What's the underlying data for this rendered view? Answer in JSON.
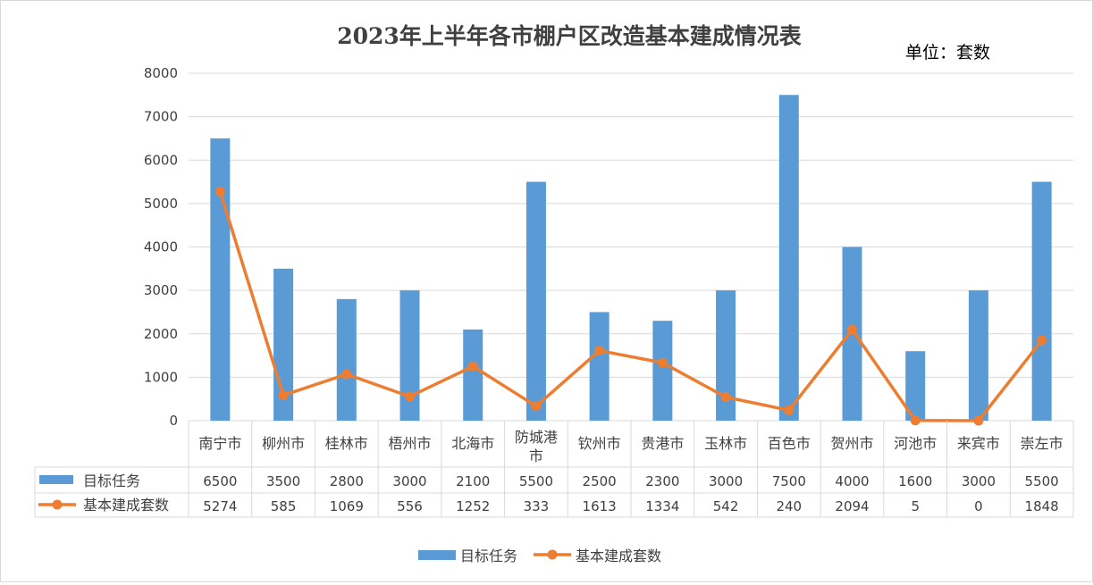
{
  "chart_data": {
    "type": "bar",
    "title": "2023年上半年各市棚户区改造基本建成情况表",
    "unit_label": "单位：套数",
    "categories": [
      "南宁市",
      "柳州市",
      "桂林市",
      "梧州市",
      "北海市",
      "防城港市",
      "钦州市",
      "贵港市",
      "玉林市",
      "百色市",
      "贺州市",
      "河池市",
      "来宾市",
      "崇左市"
    ],
    "series": [
      {
        "name": "目标任务",
        "type": "bar",
        "color": "#5b9bd5",
        "values": [
          6500,
          3500,
          2800,
          3000,
          2100,
          5500,
          2500,
          2300,
          3000,
          7500,
          4000,
          1600,
          3000,
          5500
        ]
      },
      {
        "name": "基本建成套数",
        "type": "line",
        "color": "#ed7d31",
        "values": [
          5274,
          585,
          1069,
          556,
          1252,
          333,
          1613,
          1334,
          542,
          240,
          2094,
          5,
          0,
          1848
        ]
      }
    ],
    "ylim": [
      0,
      8000
    ],
    "yticks": [
      0,
      1000,
      2000,
      3000,
      4000,
      5000,
      6000,
      7000,
      8000
    ],
    "grid": true,
    "data_table": true,
    "legend": "bottom"
  }
}
